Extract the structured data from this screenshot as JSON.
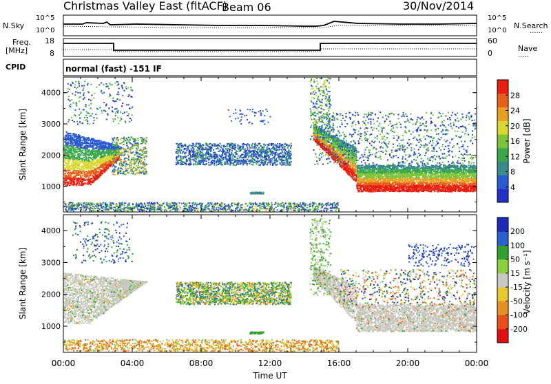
{
  "header": {
    "title": "Christmas Valley East (fitACF)",
    "beam": "Beam 06",
    "date": "30/Nov/2014"
  },
  "sky_panel": {
    "left_label": "N.Sky",
    "right_label": "N.Search",
    "ticks_left": [
      "10^5",
      "10^0"
    ],
    "ticks_right": [
      "10^5",
      "10^0"
    ]
  },
  "freq_panel": {
    "left_label_1": "Freq.",
    "left_label_2": "[MHz]",
    "right_label": "Nave",
    "ticks_left": [
      "18",
      "8"
    ],
    "ticks_right": [
      "60",
      "0"
    ]
  },
  "cpid": {
    "label": "CPID",
    "value": "normal (fast) -151 IF"
  },
  "chart_data": [
    {
      "type": "heatmap",
      "panel": "power",
      "ylabel": "Slant Range [km]",
      "xlabel": "",
      "ylim": [
        180,
        4500
      ],
      "yticks": [
        "1000",
        "2000",
        "3000",
        "4000"
      ],
      "xticks": [
        "00:00",
        "04:00",
        "08:00",
        "12:00",
        "16:00",
        "20:00",
        "00:00"
      ],
      "colorbar": {
        "label": "Power [dB]",
        "tick_labels": [
          "4",
          "8",
          "12",
          "16",
          "20",
          "24",
          "28"
        ],
        "colors": [
          "#2030c8",
          "#2a5ad0",
          "#3a8a8a",
          "#3aa84a",
          "#7ec43a",
          "#d8d830",
          "#e8a020",
          "#e86018",
          "#e82010"
        ]
      }
    },
    {
      "type": "heatmap",
      "panel": "velocity",
      "ylabel": "Slant Range [km]",
      "xlabel": "Time UT",
      "ylim": [
        180,
        4500
      ],
      "yticks": [
        "1000",
        "2000",
        "3000",
        "4000"
      ],
      "xticks": [
        "00:00",
        "04:00",
        "08:00",
        "12:00",
        "16:00",
        "20:00",
        "00:00"
      ],
      "colorbar": {
        "label": "Velocity [m s⁻¹]",
        "tick_labels": [
          "200",
          "100",
          "50",
          "15",
          "-15",
          "-50",
          "-100",
          "-200"
        ],
        "colors": [
          "#1e2ab8",
          "#2a60d0",
          "#30a030",
          "#8ad040",
          "#c8c8c0",
          "#e8c830",
          "#e89020",
          "#e85018",
          "#e01010"
        ]
      }
    }
  ]
}
